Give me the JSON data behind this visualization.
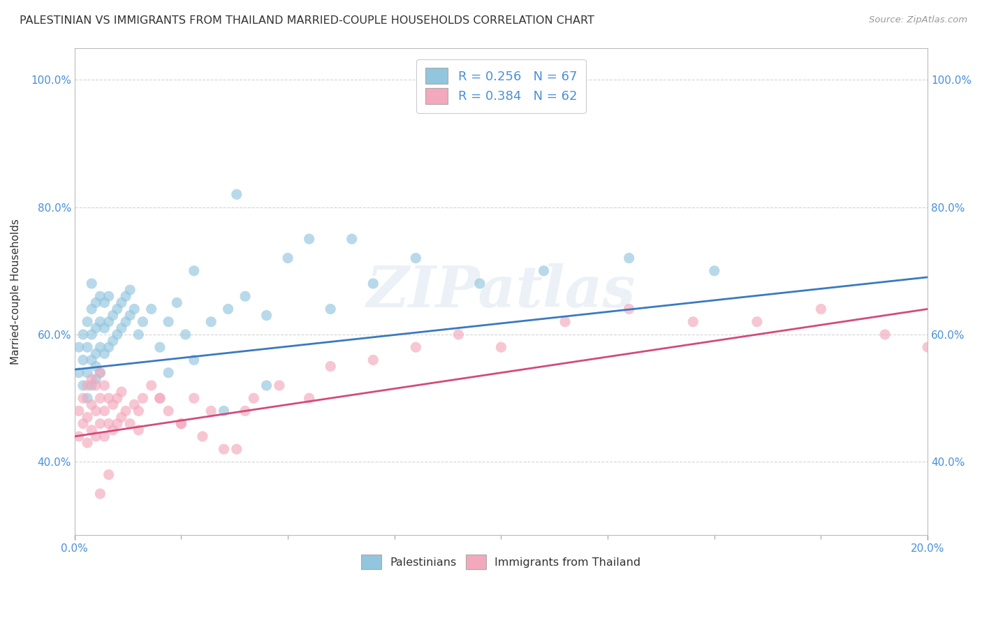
{
  "title": "PALESTINIAN VS IMMIGRANTS FROM THAILAND MARRIED-COUPLE HOUSEHOLDS CORRELATION CHART",
  "source": "Source: ZipAtlas.com",
  "ylabel": "Married-couple Households",
  "watermark": "ZIPatlas",
  "legend_label1": "Palestinians",
  "legend_label2": "Immigrants from Thailand",
  "color1": "#92c5de",
  "color2": "#f4a8bc",
  "line_color1": "#3a7abf",
  "line_color2": "#d44a7a",
  "background_color": "#ffffff",
  "grid_color": "#d0d0d0",
  "x_min": 0.0,
  "x_max": 0.2,
  "y_min": 0.285,
  "y_max": 1.05,
  "pal_line_y0": 0.545,
  "pal_line_y1": 0.69,
  "thai_line_y0": 0.44,
  "thai_line_y1": 0.64,
  "Palestinians_x": [
    0.001,
    0.001,
    0.002,
    0.002,
    0.002,
    0.003,
    0.003,
    0.003,
    0.003,
    0.004,
    0.004,
    0.004,
    0.004,
    0.004,
    0.005,
    0.005,
    0.005,
    0.005,
    0.005,
    0.006,
    0.006,
    0.006,
    0.006,
    0.007,
    0.007,
    0.007,
    0.008,
    0.008,
    0.008,
    0.009,
    0.009,
    0.01,
    0.01,
    0.011,
    0.011,
    0.012,
    0.012,
    0.013,
    0.013,
    0.014,
    0.015,
    0.016,
    0.018,
    0.02,
    0.022,
    0.024,
    0.026,
    0.028,
    0.032,
    0.036,
    0.04,
    0.045,
    0.05,
    0.06,
    0.07,
    0.08,
    0.095,
    0.11,
    0.13,
    0.15,
    0.065,
    0.038,
    0.028,
    0.022,
    0.055,
    0.045,
    0.035
  ],
  "Palestinians_y": [
    0.54,
    0.58,
    0.52,
    0.56,
    0.6,
    0.5,
    0.54,
    0.58,
    0.62,
    0.52,
    0.56,
    0.6,
    0.64,
    0.68,
    0.53,
    0.57,
    0.61,
    0.65,
    0.55,
    0.54,
    0.58,
    0.62,
    0.66,
    0.57,
    0.61,
    0.65,
    0.58,
    0.62,
    0.66,
    0.59,
    0.63,
    0.6,
    0.64,
    0.61,
    0.65,
    0.62,
    0.66,
    0.63,
    0.67,
    0.64,
    0.6,
    0.62,
    0.64,
    0.58,
    0.62,
    0.65,
    0.6,
    0.7,
    0.62,
    0.64,
    0.66,
    0.63,
    0.72,
    0.64,
    0.68,
    0.72,
    0.68,
    0.7,
    0.72,
    0.7,
    0.75,
    0.82,
    0.56,
    0.54,
    0.75,
    0.52,
    0.48
  ],
  "Thailand_x": [
    0.001,
    0.001,
    0.002,
    0.002,
    0.003,
    0.003,
    0.003,
    0.004,
    0.004,
    0.004,
    0.005,
    0.005,
    0.005,
    0.006,
    0.006,
    0.006,
    0.007,
    0.007,
    0.007,
    0.008,
    0.008,
    0.009,
    0.009,
    0.01,
    0.01,
    0.011,
    0.011,
    0.012,
    0.013,
    0.014,
    0.015,
    0.016,
    0.018,
    0.02,
    0.022,
    0.025,
    0.028,
    0.032,
    0.038,
    0.042,
    0.048,
    0.055,
    0.06,
    0.07,
    0.08,
    0.09,
    0.1,
    0.115,
    0.13,
    0.145,
    0.16,
    0.175,
    0.19,
    0.2,
    0.015,
    0.02,
    0.025,
    0.03,
    0.035,
    0.04,
    0.008,
    0.006
  ],
  "Thailand_y": [
    0.48,
    0.44,
    0.46,
    0.5,
    0.43,
    0.47,
    0.52,
    0.45,
    0.49,
    0.53,
    0.44,
    0.48,
    0.52,
    0.46,
    0.5,
    0.54,
    0.44,
    0.48,
    0.52,
    0.46,
    0.5,
    0.45,
    0.49,
    0.46,
    0.5,
    0.47,
    0.51,
    0.48,
    0.46,
    0.49,
    0.48,
    0.5,
    0.52,
    0.5,
    0.48,
    0.46,
    0.5,
    0.48,
    0.42,
    0.5,
    0.52,
    0.5,
    0.55,
    0.56,
    0.58,
    0.6,
    0.58,
    0.62,
    0.64,
    0.62,
    0.62,
    0.64,
    0.6,
    0.58,
    0.45,
    0.5,
    0.46,
    0.44,
    0.42,
    0.48,
    0.38,
    0.35
  ]
}
